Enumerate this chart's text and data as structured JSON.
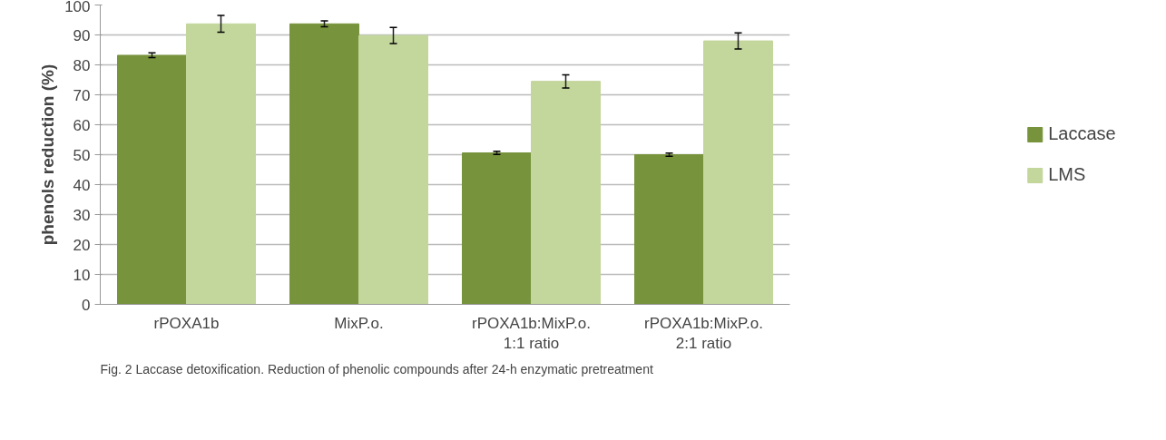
{
  "chart_data": {
    "type": "bar",
    "ylabel": "phenols reduction (%)",
    "categories": [
      "rPOXA1b",
      "MixP.o.",
      "rPOXA1b:MixP.o.\n1:1 ratio",
      "rPOXA1b:MixP.o.\n2:1 ratio"
    ],
    "series": [
      {
        "name": "Laccase",
        "color": "#77933c",
        "values": [
          83.2,
          93.7,
          50.6,
          50.0
        ],
        "errors": [
          0.8,
          1.0,
          0.5,
          0.5
        ]
      },
      {
        "name": "LMS",
        "color": "#c3d69b",
        "values": [
          93.7,
          89.8,
          74.5,
          88.0
        ],
        "errors": [
          2.8,
          2.7,
          2.2,
          2.7
        ]
      }
    ],
    "ylim": [
      0,
      100
    ],
    "yticks": [
      0,
      10,
      20,
      30,
      40,
      50,
      60,
      70,
      80,
      90,
      100
    ],
    "grid": "y",
    "legend": "right",
    "annotations": [
      "Fig. 2  Laccase detoxification. Reduction of phenolic compounds after 24-h enzymatic pretreatment"
    ]
  }
}
